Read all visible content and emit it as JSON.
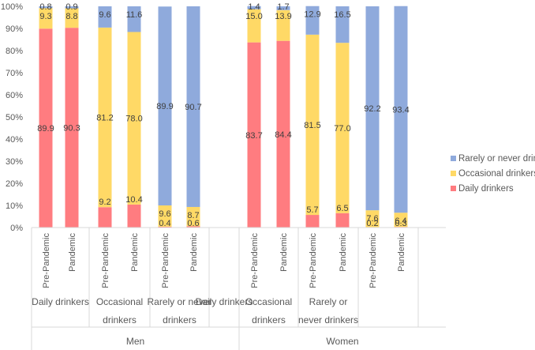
{
  "chart_data": {
    "type": "bar",
    "stacked": true,
    "y_axis": {
      "range": [
        0,
        100
      ],
      "ticks": [
        "0%",
        "10%",
        "20%",
        "30%",
        "40%",
        "50%",
        "60%",
        "70%",
        "80%",
        "90%",
        "100%"
      ]
    },
    "grid": false,
    "legend_position": "right",
    "bar_labels": [
      "Pre-Pandemic",
      "Pandemic",
      "Pre-Pandemic",
      "Pandemic",
      "Pre-Pandemic",
      "Pandemic",
      "Pre-Pandemic",
      "Pandemic",
      "Pre-Pandemic",
      "Pandemic",
      "Pre-Pandemic",
      "Pandemic"
    ],
    "subgroups": [
      {
        "label": [
          "Daily drinkers"
        ]
      },
      {
        "label": [
          "Occasional",
          "drinkers"
        ]
      },
      {
        "label": [
          "Rarely or never",
          "drinkers"
        ]
      },
      {
        "label": [
          "Daily drinkers"
        ]
      },
      {
        "label": [
          "Occasional",
          "drinkers"
        ]
      },
      {
        "label": [
          "Rarely or",
          "never drinkers"
        ]
      }
    ],
    "groups": [
      "Men",
      "Women"
    ],
    "series": [
      {
        "name": "Daily drinkers",
        "color": "#ff7c80",
        "values": [
          89.9,
          90.3,
          9.2,
          10.4,
          0.4,
          0.6,
          83.7,
          84.4,
          5.7,
          6.5,
          0.2,
          0.3
        ]
      },
      {
        "name": "Occasional drinkers",
        "color": "#ffd966",
        "values": [
          9.3,
          8.8,
          81.2,
          78.0,
          9.6,
          8.7,
          15.0,
          13.9,
          81.5,
          77.0,
          7.6,
          6.4
        ]
      },
      {
        "name": "Rarely or never drinkers",
        "color": "#8faadc",
        "values": [
          0.8,
          0.9,
          9.6,
          11.6,
          89.9,
          90.7,
          1.4,
          1.7,
          12.9,
          16.5,
          92.2,
          93.4
        ]
      }
    ],
    "legend_order": [
      "Rarely or never drinkers",
      "Occasional drinkers",
      "Daily drinkers"
    ]
  }
}
